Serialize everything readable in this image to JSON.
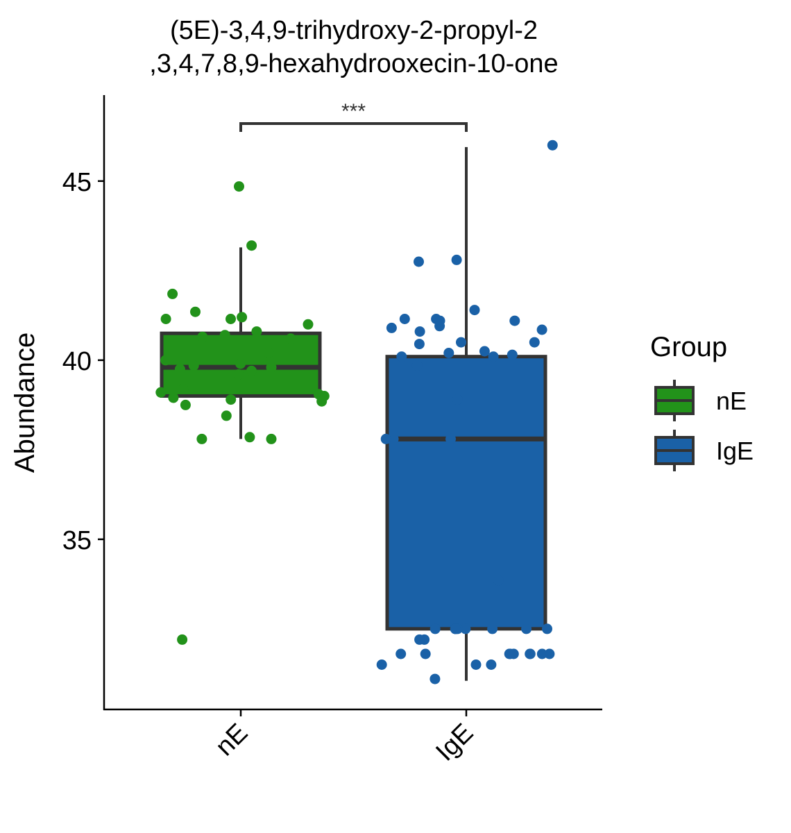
{
  "chart_data": {
    "type": "boxplot",
    "title": [
      "(5E)-3,4,9-trihydroxy-2-propyl-2",
      ",3,4,7,8,9-hexahydrooxecin-10-one"
    ],
    "ylabel": "Abundance",
    "ylim": [
      30.25,
      47.4
    ],
    "yticks": [
      35,
      40,
      45
    ],
    "categories": [
      "nE",
      "IgE"
    ],
    "legend": {
      "title": "Group",
      "entries": [
        "nE",
        "IgE"
      ],
      "position": "right"
    },
    "colors": {
      "nE": "#22921a",
      "IgE": "#1a61a7",
      "box_stroke": "#333333"
    },
    "significance": {
      "label": "***",
      "between": [
        "nE",
        "IgE"
      ]
    },
    "series": [
      {
        "name": "nE",
        "box": {
          "whisker_low": 37.8,
          "q1": 39.0,
          "median": 39.8,
          "q3": 40.75,
          "whisker_high": 43.15
        },
        "points": [
          44.85,
          43.2,
          41.85,
          41.35,
          41.15,
          41.2,
          41.15,
          41.0,
          40.8,
          40.7,
          40.65,
          40.6,
          40.2,
          40.0,
          39.9,
          39.85,
          39.8,
          39.75,
          39.7,
          39.6,
          39.2,
          39.1,
          39.05,
          39.0,
          38.95,
          38.9,
          38.85,
          38.75,
          38.45,
          37.85,
          37.8,
          37.8,
          32.2
        ]
      },
      {
        "name": "IgE",
        "box": {
          "whisker_low": 31.05,
          "q1": 32.5,
          "median": 37.8,
          "q3": 40.1,
          "whisker_high": 45.95
        },
        "points": [
          46.0,
          42.8,
          42.75,
          41.4,
          41.15,
          41.15,
          41.1,
          41.1,
          40.95,
          40.9,
          40.85,
          40.8,
          40.5,
          40.5,
          40.45,
          40.25,
          40.2,
          40.15,
          40.1,
          40.1,
          39.85,
          38.9,
          37.8,
          37.8,
          37.8,
          33.85,
          32.5,
          32.5,
          32.5,
          32.5,
          32.5,
          32.5,
          32.5,
          32.5,
          32.5,
          32.2,
          32.2,
          31.8,
          31.8,
          31.8,
          31.8,
          31.8,
          31.8,
          31.8,
          31.8,
          31.8,
          31.5,
          31.5,
          31.5,
          31.1
        ]
      }
    ]
  }
}
